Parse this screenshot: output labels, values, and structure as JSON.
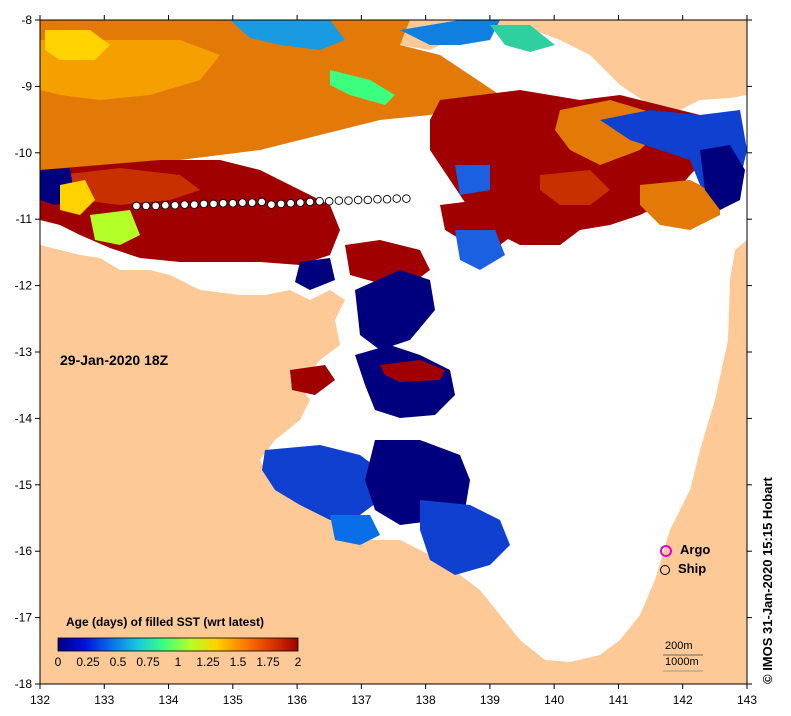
{
  "map": {
    "lon_ticks": [
      "132",
      "133",
      "134",
      "135",
      "136",
      "137",
      "138",
      "139",
      "140",
      "141",
      "142",
      "143"
    ],
    "lat_ticks": [
      "-8",
      "-9",
      "-10",
      "-11",
      "-12",
      "-13",
      "-14",
      "-15",
      "-16",
      "-17",
      "-18"
    ],
    "lon_range": [
      132,
      143
    ],
    "lat_range": [
      -8,
      -18
    ],
    "date_label": "29-Jan-2020 18Z",
    "credit": "© IMOS 31-Jan-2020 15:15 Hobart",
    "land_color": "#fcc997",
    "no_data_color": "#ffffff"
  },
  "legend": {
    "argo_label": "Argo",
    "ship_label": "Ship",
    "argo_color": "#e000e0"
  },
  "scale": {
    "contour_200": "200m",
    "contour_1000": "1000m"
  },
  "colorbar": {
    "title": "Age (days) of filled SST (wrt latest)",
    "ticks": [
      "0",
      "0.25",
      "0.5",
      "0.75",
      "1",
      "1.25",
      "1.5",
      "1.75",
      "2"
    ],
    "range": [
      0,
      2
    ],
    "colors": [
      "#00007f",
      "#0010d8",
      "#0a6ee8",
      "#14c8e0",
      "#3cff80",
      "#b4ff28",
      "#ffd200",
      "#ff8000",
      "#e03c00",
      "#a00000"
    ]
  },
  "ship_track": {
    "lons": [
      133.5,
      133.65,
      133.8,
      133.95,
      134.1,
      134.25,
      134.4,
      134.55,
      134.7,
      134.85,
      135.0,
      135.15,
      135.3,
      135.45,
      135.6,
      135.75,
      135.9,
      136.05,
      136.2,
      136.35,
      136.5,
      136.65,
      136.8,
      136.95,
      137.1,
      137.25,
      137.4,
      137.55,
      137.7
    ],
    "lats": [
      -10.8,
      -10.8,
      -10.8,
      -10.79,
      -10.79,
      -10.78,
      -10.78,
      -10.77,
      -10.77,
      -10.76,
      -10.76,
      -10.75,
      -10.75,
      -10.74,
      -10.78,
      -10.77,
      -10.76,
      -10.75,
      -10.74,
      -10.73,
      -10.73,
      -10.72,
      -10.72,
      -10.71,
      -10.71,
      -10.7,
      -10.7,
      -10.69,
      -10.69
    ]
  }
}
